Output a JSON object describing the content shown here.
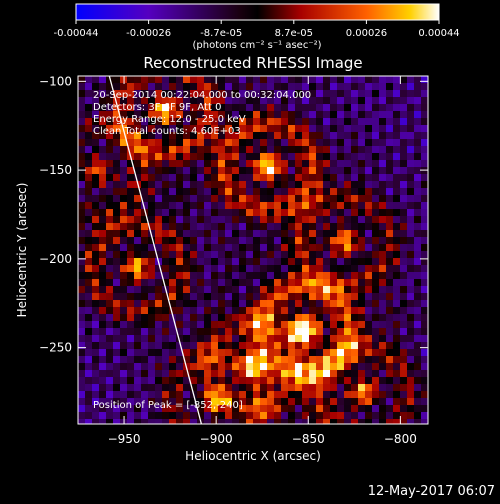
{
  "chart_data": {
    "type": "heatmap",
    "title": "Reconstructed RHESSI Image",
    "xlabel": "Heliocentric X (arcsec)",
    "ylabel": "Heliocentric Y (arcsec)",
    "xlim": [
      -975,
      -785
    ],
    "ylim": [
      -293,
      -97
    ],
    "xticks": [
      -950,
      -900,
      -850,
      -800
    ],
    "yticks": [
      -100,
      -150,
      -200,
      -250
    ],
    "colorbar": {
      "range": [
        -0.00044,
        0.00044
      ],
      "ticks": [
        "-0.00044",
        "-0.00026",
        "-8.7e-05",
        "8.7e-05",
        "0.00026",
        "0.00044"
      ],
      "unit_label": "(photons cm⁻² s⁻¹ asec⁻²)",
      "colormap": "blue-purple-black-red-yellow-white"
    },
    "annotations": [
      "20-Sep-2014 00:22:04.000 to 00:32:04.000",
      "Detectors: 3F 6F 9F, Att 0",
      "Energy Range: 12.0 - 25.0 keV",
      "Clean   Total counts: 4.60E+03"
    ],
    "peak_label": "Position of Peak = [-852,-240]",
    "peak_position": [
      -852,
      -240
    ],
    "limb_line": [
      [
        -958,
        -97
      ],
      [
        -908,
        -293
      ]
    ],
    "grid": false
  },
  "footer": {
    "timestamp": "12-May-2017 06:07"
  }
}
